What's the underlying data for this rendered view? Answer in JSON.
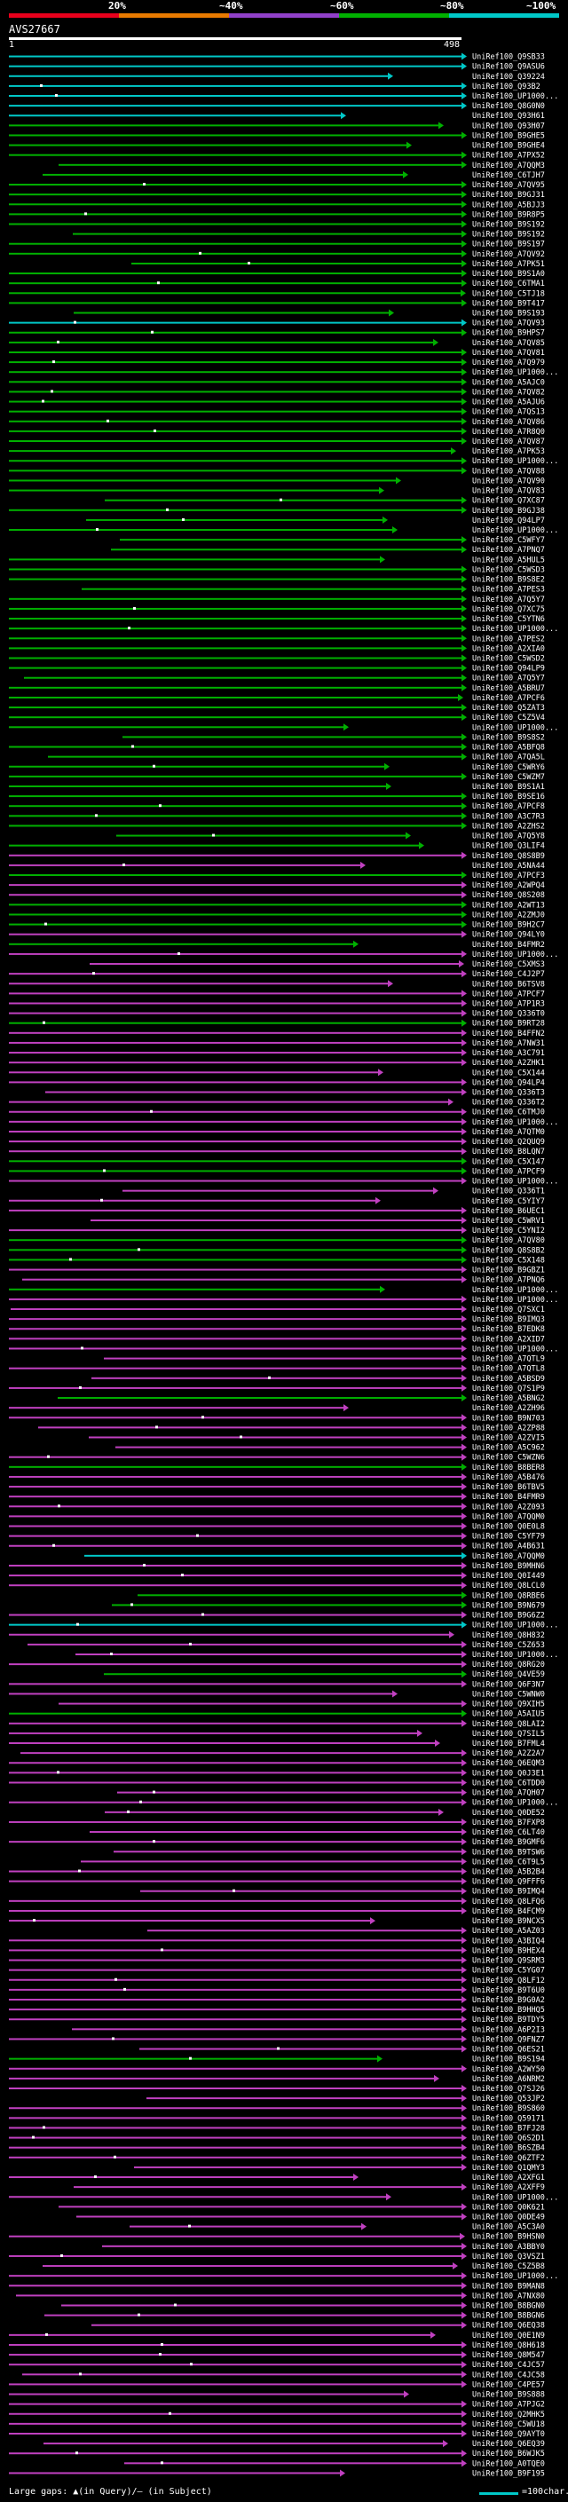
{
  "query": {
    "name": "AVS27667",
    "start_label": "1",
    "end_label": "498"
  },
  "scale": {
    "labels": [
      "20%",
      "~40%",
      "~60%",
      "~80%",
      "~100%"
    ],
    "colors": [
      "#e8001c",
      "#e87a00",
      "#9040c8",
      "#00b000",
      "#00c8c8"
    ]
  },
  "footer": {
    "gaps_label": "Large gaps: ▲(in Query)/— (in Subject)",
    "scale_label": "=100char."
  },
  "hits": [
    {
      "name": "UniRef100_Q9SB33",
      "color": "cyan"
    },
    {
      "name": "UniRef100_Q9ASU6",
      "color": "cyan"
    },
    {
      "name": "UniRef100_Q39224",
      "color": "cyan"
    },
    {
      "name": "UniRef100_Q93B2",
      "color": "cyan"
    },
    {
      "name": "UniRef100_UP1000...",
      "color": "cyan"
    },
    {
      "name": "UniRef100_Q8G0N0",
      "color": "cyan"
    },
    {
      "name": "UniRef100_Q93H61",
      "color": "cyan"
    },
    {
      "name": "UniRef100_Q93H07",
      "color": "green"
    },
    {
      "name": "UniRef100_B9GHE5",
      "color": "green"
    },
    {
      "name": "UniRef100_B9GHE4",
      "color": "green"
    },
    {
      "name": "UniRef100_A7PX52",
      "color": "green"
    },
    {
      "name": "UniRef100_A7QQM3",
      "color": "green"
    },
    {
      "name": "UniRef100_C6TJH7",
      "color": "green"
    },
    {
      "name": "UniRef100_A7QV95",
      "color": "green"
    },
    {
      "name": "UniRef100_B9GJ31",
      "color": "green"
    },
    {
      "name": "UniRef100_A5BJJ3",
      "color": "green"
    },
    {
      "name": "UniRef100_B9R8P5",
      "color": "green"
    },
    {
      "name": "UniRef100_B9S192",
      "color": "green"
    },
    {
      "name": "UniRef100_B9S192",
      "color": "green"
    },
    {
      "name": "UniRef100_B9S197",
      "color": "green"
    },
    {
      "name": "UniRef100_A7QV92",
      "color": "green"
    },
    {
      "name": "UniRef100_A7PK51",
      "color": "green"
    },
    {
      "name": "UniRef100_B9S1A0",
      "color": "green"
    },
    {
      "name": "UniRef100_C6TMA1",
      "color": "green"
    },
    {
      "name": "UniRef100_C5TJ18",
      "color": "green"
    },
    {
      "name": "UniRef100_B9T417",
      "color": "green"
    },
    {
      "name": "UniRef100_B9S193",
      "color": "green"
    },
    {
      "name": "UniRef100_A7QV93",
      "color": "cyan"
    },
    {
      "name": "UniRef100_B9HPS7",
      "color": "green"
    },
    {
      "name": "UniRef100_A7QV85",
      "color": "green"
    },
    {
      "name": "UniRef100_A7QV81",
      "color": "green"
    },
    {
      "name": "UniRef100_A7Q979",
      "color": "green"
    },
    {
      "name": "UniRef100_UP1000...",
      "color": "green"
    },
    {
      "name": "UniRef100_A5AJC0",
      "color": "green"
    },
    {
      "name": "UniRef100_A7QV82",
      "color": "green"
    },
    {
      "name": "UniRef100_A5AJU6",
      "color": "green"
    },
    {
      "name": "UniRef100_A7QS13",
      "color": "green"
    },
    {
      "name": "UniRef100_A7QV86",
      "color": "green"
    },
    {
      "name": "UniRef100_A7R8Q0",
      "color": "green"
    },
    {
      "name": "UniRef100_A7QV87",
      "color": "green"
    },
    {
      "name": "UniRef100_A7PK53",
      "color": "green"
    },
    {
      "name": "UniRef100_UP1000...",
      "color": "green"
    },
    {
      "name": "UniRef100_A7QV88",
      "color": "green"
    },
    {
      "name": "UniRef100_A7QV90",
      "color": "green"
    },
    {
      "name": "UniRef100_A7QV83",
      "color": "green"
    },
    {
      "name": "UniRef100_Q7XC87",
      "color": "green"
    },
    {
      "name": "UniRef100_B9GJ38",
      "color": "green"
    },
    {
      "name": "UniRef100_Q94LP7",
      "color": "green"
    },
    {
      "name": "UniRef100_UP1000...",
      "color": "green"
    },
    {
      "name": "UniRef100_C5WFY7",
      "color": "green"
    },
    {
      "name": "UniRef100_A7PNQ7",
      "color": "green"
    },
    {
      "name": "UniRef100_A5HUL5",
      "color": "green"
    },
    {
      "name": "UniRef100_C5WSD3",
      "color": "green"
    },
    {
      "name": "UniRef100_B9S8E2",
      "color": "green"
    },
    {
      "name": "UniRef100_A7PES3",
      "color": "green"
    },
    {
      "name": "UniRef100_A7Q5Y7",
      "color": "green"
    },
    {
      "name": "UniRef100_Q7XC75",
      "color": "green"
    },
    {
      "name": "UniRef100_C5YTN6",
      "color": "green"
    },
    {
      "name": "UniRef100_UP1000...",
      "color": "green"
    },
    {
      "name": "UniRef100_A7PES2",
      "color": "green"
    },
    {
      "name": "UniRef100_A2XIA0",
      "color": "green"
    },
    {
      "name": "UniRef100_C5WSD2",
      "color": "green"
    },
    {
      "name": "UniRef100_Q94LP9",
      "color": "green"
    },
    {
      "name": "UniRef100_A7Q5Y7",
      "color": "green"
    },
    {
      "name": "UniRef100_A5BRU7",
      "color": "green"
    },
    {
      "name": "UniRef100_A7PCF6",
      "color": "green"
    },
    {
      "name": "UniRef100_Q5ZAT3",
      "color": "green"
    },
    {
      "name": "UniRef100_C5Z5V4",
      "color": "green"
    },
    {
      "name": "UniRef100_UP1000...",
      "color": "green"
    },
    {
      "name": "UniRef100_B9S8S2",
      "color": "green"
    },
    {
      "name": "UniRef100_A5BFQ8",
      "color": "green"
    },
    {
      "name": "UniRef100_A7QA5L",
      "color": "green"
    },
    {
      "name": "UniRef100_C5WRY6",
      "color": "green"
    },
    {
      "name": "UniRef100_C5WZM7",
      "color": "green"
    },
    {
      "name": "UniRef100_B9S1A1",
      "color": "green"
    },
    {
      "name": "UniRef100_B9SE16",
      "color": "green"
    },
    {
      "name": "UniRef100_A7PCF8",
      "color": "green"
    },
    {
      "name": "UniRef100_A3C7R3",
      "color": "green"
    },
    {
      "name": "UniRef100_A2ZHS2",
      "color": "green"
    },
    {
      "name": "UniRef100_A7Q5Y8",
      "color": "green"
    },
    {
      "name": "UniRef100_Q3LIF4",
      "color": "green"
    },
    {
      "name": "UniRef100_Q8S8B9",
      "color": "magenta"
    },
    {
      "name": "UniRef100_A5NA44",
      "color": "magenta"
    },
    {
      "name": "UniRef100_A7PCF3",
      "color": "green"
    },
    {
      "name": "UniRef100_A2WPQ4",
      "color": "magenta"
    },
    {
      "name": "UniRef100_Q8S208",
      "color": "magenta"
    },
    {
      "name": "UniRef100_A2WT13",
      "color": "green"
    },
    {
      "name": "UniRef100_A2ZMJ0",
      "color": "green"
    },
    {
      "name": "UniRef100_B9H2C7",
      "color": "green"
    },
    {
      "name": "UniRef100_Q94LY0",
      "color": "magenta"
    },
    {
      "name": "UniRef100_B4FMR2",
      "color": "green"
    },
    {
      "name": "UniRef100_UP1000...",
      "color": "magenta"
    },
    {
      "name": "UniRef100_C5XMS3",
      "color": "magenta"
    },
    {
      "name": "UniRef100_C4J2P7",
      "color": "magenta"
    },
    {
      "name": "UniRef100_B6TSV8",
      "color": "magenta"
    },
    {
      "name": "UniRef100_A7PCF7",
      "color": "magenta"
    },
    {
      "name": "UniRef100_A7P1R3",
      "color": "magenta"
    },
    {
      "name": "UniRef100_Q336T0",
      "color": "magenta"
    },
    {
      "name": "UniRef100_B9RT28",
      "color": "green"
    },
    {
      "name": "UniRef100_B4FFN2",
      "color": "magenta"
    },
    {
      "name": "UniRef100_A7NW31",
      "color": "magenta"
    },
    {
      "name": "UniRef100_A3C791",
      "color": "magenta"
    },
    {
      "name": "UniRef100_A2ZHK1",
      "color": "magenta"
    },
    {
      "name": "UniRef100_C5X144",
      "color": "magenta"
    },
    {
      "name": "UniRef100_Q94LP4",
      "color": "magenta"
    },
    {
      "name": "UniRef100_Q336T3",
      "color": "magenta"
    },
    {
      "name": "UniRef100_Q336T2",
      "color": "magenta"
    },
    {
      "name": "UniRef100_C6TMJ0",
      "color": "magenta"
    },
    {
      "name": "UniRef100_UP1000...",
      "color": "magenta"
    },
    {
      "name": "UniRef100_A7QTM0",
      "color": "magenta"
    },
    {
      "name": "UniRef100_Q2QUQ9",
      "color": "magenta"
    },
    {
      "name": "UniRef100_B8LQN7",
      "color": "magenta"
    },
    {
      "name": "UniRef100_C5X147",
      "color": "green"
    },
    {
      "name": "UniRef100_A7PCF9",
      "color": "green"
    },
    {
      "name": "UniRef100_UP1000...",
      "color": "magenta"
    },
    {
      "name": "UniRef100_Q336T1",
      "color": "magenta"
    },
    {
      "name": "UniRef100_C5YIY7",
      "color": "magenta"
    },
    {
      "name": "UniRef100_B6UEC1",
      "color": "magenta"
    },
    {
      "name": "UniRef100_C5WRV1",
      "color": "magenta"
    },
    {
      "name": "UniRef100_C5YNI2",
      "color": "magenta"
    },
    {
      "name": "UniRef100_A7QV80",
      "color": "green"
    },
    {
      "name": "UniRef100_Q8S8B2",
      "color": "green"
    },
    {
      "name": "UniRef100_C5X148",
      "color": "green"
    },
    {
      "name": "UniRef100_B9GBZ1",
      "color": "magenta"
    },
    {
      "name": "UniRef100_A7PNQ6",
      "color": "magenta"
    },
    {
      "name": "UniRef100_UP1000...",
      "color": "green"
    },
    {
      "name": "UniRef100_UP1000...",
      "color": "magenta"
    },
    {
      "name": "UniRef100_Q7SXC1",
      "color": "magenta"
    },
    {
      "name": "UniRef100_B9IMQ3",
      "color": "magenta"
    },
    {
      "name": "UniRef100_B7EDK8",
      "color": "magenta"
    },
    {
      "name": "UniRef100_A2XID7",
      "color": "magenta"
    },
    {
      "name": "UniRef100_UP1000...",
      "color": "magenta"
    },
    {
      "name": "UniRef100_A7QTL9",
      "color": "magenta"
    },
    {
      "name": "UniRef100_A7QTL8",
      "color": "magenta"
    },
    {
      "name": "UniRef100_A5BSD9",
      "color": "magenta"
    },
    {
      "name": "UniRef100_Q7S1P9",
      "color": "magenta"
    },
    {
      "name": "UniRef100_A5BNG2",
      "color": "green"
    },
    {
      "name": "UniRef100_A2ZH96",
      "color": "magenta"
    },
    {
      "name": "UniRef100_B9N703",
      "color": "magenta"
    },
    {
      "name": "UniRef100_A2ZP88",
      "color": "magenta"
    },
    {
      "name": "UniRef100_A2ZVI5",
      "color": "magenta"
    },
    {
      "name": "UniRef100_A5C962",
      "color": "magenta"
    },
    {
      "name": "UniRef100_C5WZN6",
      "color": "magenta"
    },
    {
      "name": "UniRef100_B8BER8",
      "color": "green"
    },
    {
      "name": "UniRef100_A5B476",
      "color": "magenta"
    },
    {
      "name": "UniRef100_B6TBV5",
      "color": "magenta"
    },
    {
      "name": "UniRef100_B4FMR9",
      "color": "magenta"
    },
    {
      "name": "UniRef100_A2Z093",
      "color": "magenta"
    },
    {
      "name": "UniRef100_A7QQM0",
      "color": "magenta"
    },
    {
      "name": "UniRef100_Q0E0L8",
      "color": "magenta"
    },
    {
      "name": "UniRef100_C5YF79",
      "color": "magenta"
    },
    {
      "name": "UniRef100_A4B631",
      "color": "magenta"
    },
    {
      "name": "UniRef100_A7QQM0",
      "color": "cyan"
    },
    {
      "name": "UniRef100_B9MHN6",
      "color": "magenta"
    },
    {
      "name": "UniRef100_Q0I449",
      "color": "magenta"
    },
    {
      "name": "UniRef100_Q8LCL0",
      "color": "magenta"
    },
    {
      "name": "UniRef100_Q8RBE6",
      "color": "green"
    },
    {
      "name": "UniRef100_B9N679",
      "color": "green"
    },
    {
      "name": "UniRef100_B9G6Z2",
      "color": "magenta"
    },
    {
      "name": "UniRef100_UP1000...",
      "color": "cyan"
    },
    {
      "name": "UniRef100_Q8H832",
      "color": "magenta"
    },
    {
      "name": "UniRef100_C5Z653",
      "color": "magenta"
    },
    {
      "name": "UniRef100_UP1000...",
      "color": "magenta"
    },
    {
      "name": "UniRef100_Q8RG20",
      "color": "magenta"
    },
    {
      "name": "UniRef100_Q4VE59",
      "color": "green"
    },
    {
      "name": "UniRef100_Q6F3N7",
      "color": "magenta"
    },
    {
      "name": "UniRef100_C5WNW0",
      "color": "magenta"
    },
    {
      "name": "UniRef100_Q9XIH5",
      "color": "magenta"
    },
    {
      "name": "UniRef100_A5AIU5",
      "color": "green"
    },
    {
      "name": "UniRef100_Q8LAI2",
      "color": "magenta"
    },
    {
      "name": "UniRef100_Q7SIL5",
      "color": "magenta"
    },
    {
      "name": "UniRef100_B7FML4",
      "color": "magenta"
    },
    {
      "name": "UniRef100_A2Z2A7",
      "color": "magenta"
    },
    {
      "name": "UniRef100_Q6EQM3",
      "color": "magenta"
    },
    {
      "name": "UniRef100_Q0J3E1",
      "color": "magenta"
    },
    {
      "name": "UniRef100_C6TDD0",
      "color": "magenta"
    },
    {
      "name": "UniRef100_A7QH07",
      "color": "magenta"
    },
    {
      "name": "UniRef100_UP1000...",
      "color": "magenta"
    },
    {
      "name": "UniRef100_Q0DE52",
      "color": "magenta"
    },
    {
      "name": "UniRef100_B7FXP8",
      "color": "magenta"
    },
    {
      "name": "UniRef100_C6LT40",
      "color": "magenta"
    },
    {
      "name": "UniRef100_B9GMF6",
      "color": "magenta"
    },
    {
      "name": "UniRef100_B9TSW6",
      "color": "magenta"
    },
    {
      "name": "UniRef100_C6T9L5",
      "color": "magenta"
    },
    {
      "name": "UniRef100_A5B2B4",
      "color": "magenta"
    },
    {
      "name": "UniRef100_Q9FFF6",
      "color": "magenta"
    },
    {
      "name": "UniRef100_B9IMQ4",
      "color": "magenta"
    },
    {
      "name": "UniRef100_Q8LFQ6",
      "color": "magenta"
    },
    {
      "name": "UniRef100_B4FCM9",
      "color": "magenta"
    },
    {
      "name": "UniRef100_B9NCX5",
      "color": "magenta"
    },
    {
      "name": "UniRef100_A5AZ03",
      "color": "magenta"
    },
    {
      "name": "UniRef100_A3BIQ4",
      "color": "magenta"
    },
    {
      "name": "UniRef100_B9HEX4",
      "color": "magenta"
    },
    {
      "name": "UniRef100_Q9SRM3",
      "color": "magenta"
    },
    {
      "name": "UniRef100_C5YG07",
      "color": "magenta"
    },
    {
      "name": "UniRef100_Q8LF12",
      "color": "magenta"
    },
    {
      "name": "UniRef100_B9T6U0",
      "color": "magenta"
    },
    {
      "name": "UniRef100_B9G0A2",
      "color": "magenta"
    },
    {
      "name": "UniRef100_B9HHQ5",
      "color": "magenta"
    },
    {
      "name": "UniRef100_B9TDY5",
      "color": "magenta"
    },
    {
      "name": "UniRef100_A6P2I3",
      "color": "magenta"
    },
    {
      "name": "UniRef100_Q9FNZ7",
      "color": "magenta"
    },
    {
      "name": "UniRef100_Q6ES21",
      "color": "magenta"
    },
    {
      "name": "UniRef100_B9S194",
      "color": "green"
    },
    {
      "name": "UniRef100_A2WY50",
      "color": "magenta"
    },
    {
      "name": "UniRef100_A6NRM2",
      "color": "magenta"
    },
    {
      "name": "UniRef100_Q7SJ26",
      "color": "magenta"
    },
    {
      "name": "UniRef100_Q53JP2",
      "color": "magenta"
    },
    {
      "name": "UniRef100_B9S860",
      "color": "magenta"
    },
    {
      "name": "UniRef100_Q59171",
      "color": "magenta"
    },
    {
      "name": "UniRef100_B7FJ28",
      "color": "magenta"
    },
    {
      "name": "UniRef100_Q6S2D1",
      "color": "magenta"
    },
    {
      "name": "UniRef100_B6SZB4",
      "color": "magenta"
    },
    {
      "name": "UniRef100_Q6ZTF2",
      "color": "magenta"
    },
    {
      "name": "UniRef100_Q1QMY3",
      "color": "magenta"
    },
    {
      "name": "UniRef100_A2XFG1",
      "color": "magenta"
    },
    {
      "name": "UniRef100_A2XFF9",
      "color": "magenta"
    },
    {
      "name": "UniRef100_UP1000...",
      "color": "magenta"
    },
    {
      "name": "UniRef100_Q0K621",
      "color": "magenta"
    },
    {
      "name": "UniRef100_Q0DE49",
      "color": "magenta"
    },
    {
      "name": "UniRef100_A5C3A0",
      "color": "magenta"
    },
    {
      "name": "UniRef100_B9HSN0",
      "color": "magenta"
    },
    {
      "name": "UniRef100_A3BBY0",
      "color": "magenta"
    },
    {
      "name": "UniRef100_Q3VSZ1",
      "color": "magenta"
    },
    {
      "name": "UniRef100_C5Z5B8",
      "color": "magenta"
    },
    {
      "name": "UniRef100_UP1000...",
      "color": "magenta"
    },
    {
      "name": "UniRef100_B9MAN8",
      "color": "magenta"
    },
    {
      "name": "UniRef100_A7NX80",
      "color": "magenta"
    },
    {
      "name": "UniRef100_B8BGN0",
      "color": "magenta"
    },
    {
      "name": "UniRef100_B8BGN6",
      "color": "magenta"
    },
    {
      "name": "UniRef100_Q6EQ38",
      "color": "magenta"
    },
    {
      "name": "UniRef100_Q0E1N9",
      "color": "magenta"
    },
    {
      "name": "UniRef100_Q8H618",
      "color": "magenta"
    },
    {
      "name": "UniRef100_Q8M547",
      "color": "magenta"
    },
    {
      "name": "UniRef100_C4JC57",
      "color": "magenta"
    },
    {
      "name": "UniRef100_C4JC58",
      "color": "magenta"
    },
    {
      "name": "UniRef100_C4PE57",
      "color": "magenta"
    },
    {
      "name": "UniRef100_B9S888",
      "color": "magenta"
    },
    {
      "name": "UniRef100_A7PJG2",
      "color": "magenta"
    },
    {
      "name": "UniRef100_Q2MHK5",
      "color": "magenta"
    },
    {
      "name": "UniRef100_C5WU18",
      "color": "magenta"
    },
    {
      "name": "UniRef100_Q9AYT0",
      "color": "magenta"
    },
    {
      "name": "UniRef100_Q6EQ39",
      "color": "magenta"
    },
    {
      "name": "UniRef100_B6WJK5",
      "color": "magenta"
    },
    {
      "name": "UniRef100_A0TQE0",
      "color": "magenta"
    },
    {
      "name": "UniRef100_B9F195",
      "color": "magenta"
    }
  ]
}
